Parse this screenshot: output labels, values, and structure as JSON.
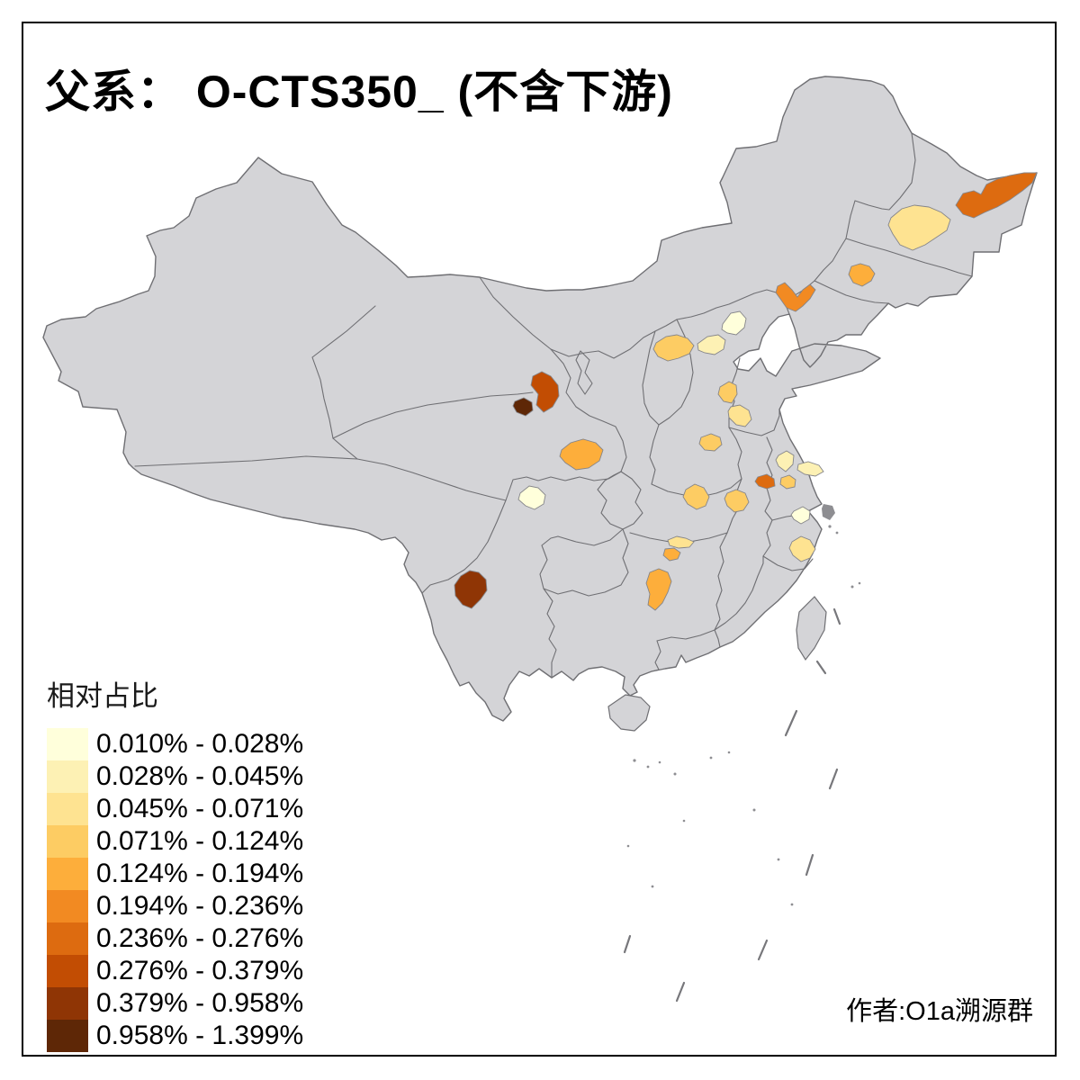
{
  "title": "父系： O-CTS350_ (不含下游)",
  "attribution": "作者:O1a溯源群",
  "legend": {
    "title": "相对占比",
    "classes": [
      {
        "label": "0.010% - 0.028%",
        "color": "#FFFFDB"
      },
      {
        "label": "0.028% - 0.045%",
        "color": "#FDF1B4"
      },
      {
        "label": "0.045% - 0.071%",
        "color": "#FEE391"
      },
      {
        "label": "0.071% - 0.124%",
        "color": "#FDCC63"
      },
      {
        "label": "0.124% - 0.194%",
        "color": "#FDAE3B"
      },
      {
        "label": "0.194% - 0.236%",
        "color": "#F28A22"
      },
      {
        "label": "0.236% - 0.276%",
        "color": "#DD6B10"
      },
      {
        "label": "0.276% - 0.379%",
        "color": "#C24D03"
      },
      {
        "label": "0.379% - 0.958%",
        "color": "#8F3505"
      },
      {
        "label": "0.958% - 1.399%",
        "color": "#5E2706"
      }
    ]
  },
  "map": {
    "land_fill": "#D4D4D7",
    "border_color": "#6F6F73",
    "region_stroke": "#85858A",
    "regions": [
      {
        "name": "heilongjiang-northeast",
        "class_index": 7,
        "points": [
          [
            1062,
            228
          ],
          [
            1070,
            215
          ],
          [
            1082,
            212
          ],
          [
            1090,
            216
          ],
          [
            1096,
            205
          ],
          [
            1108,
            199
          ],
          [
            1122,
            195
          ],
          [
            1138,
            192
          ],
          [
            1152,
            192
          ],
          [
            1147,
            203
          ],
          [
            1136,
            212
          ],
          [
            1122,
            222
          ],
          [
            1108,
            230
          ],
          [
            1094,
            236
          ],
          [
            1082,
            242
          ],
          [
            1070,
            238
          ]
        ]
      },
      {
        "name": "heilongjiang-west",
        "class_index": 3,
        "points": [
          [
            990,
            242
          ],
          [
            1002,
            232
          ],
          [
            1016,
            228
          ],
          [
            1032,
            230
          ],
          [
            1046,
            236
          ],
          [
            1056,
            244
          ],
          [
            1052,
            256
          ],
          [
            1040,
            264
          ],
          [
            1028,
            272
          ],
          [
            1014,
            278
          ],
          [
            1000,
            272
          ],
          [
            992,
            260
          ],
          [
            987,
            250
          ]
        ]
      },
      {
        "name": "jilin-west",
        "class_index": 5,
        "points": [
          [
            946,
            296
          ],
          [
            956,
            293
          ],
          [
            966,
            296
          ],
          [
            972,
            304
          ],
          [
            968,
            312
          ],
          [
            958,
            318
          ],
          [
            948,
            314
          ],
          [
            943,
            305
          ]
        ]
      },
      {
        "name": "liaoning-west",
        "class_index": 6,
        "points": [
          [
            864,
            318
          ],
          [
            872,
            314
          ],
          [
            880,
            322
          ],
          [
            886,
            330
          ],
          [
            892,
            322
          ],
          [
            900,
            316
          ],
          [
            906,
            322
          ],
          [
            900,
            332
          ],
          [
            892,
            340
          ],
          [
            884,
            346
          ],
          [
            874,
            342
          ],
          [
            867,
            332
          ],
          [
            862,
            325
          ]
        ]
      },
      {
        "name": "shanxi-north",
        "class_index": 4,
        "points": [
          [
            729,
            381
          ],
          [
            740,
            374
          ],
          [
            752,
            372
          ],
          [
            764,
            376
          ],
          [
            771,
            384
          ],
          [
            766,
            393
          ],
          [
            754,
            398
          ],
          [
            742,
            401
          ],
          [
            731,
            396
          ],
          [
            726,
            388
          ]
        ]
      },
      {
        "name": "hebei-central",
        "class_index": 2,
        "points": [
          [
            775,
            382
          ],
          [
            786,
            374
          ],
          [
            798,
            372
          ],
          [
            806,
            378
          ],
          [
            804,
            388
          ],
          [
            794,
            394
          ],
          [
            783,
            392
          ],
          [
            776,
            389
          ]
        ]
      },
      {
        "name": "beijing",
        "class_index": 1,
        "points": [
          [
            803,
            360
          ],
          [
            812,
            348
          ],
          [
            822,
            346
          ],
          [
            829,
            354
          ],
          [
            827,
            364
          ],
          [
            818,
            372
          ],
          [
            808,
            370
          ],
          [
            802,
            366
          ]
        ]
      },
      {
        "name": "hebei-south",
        "class_index": 4,
        "points": [
          [
            800,
            430
          ],
          [
            810,
            424
          ],
          [
            818,
            428
          ],
          [
            819,
            438
          ],
          [
            813,
            448
          ],
          [
            804,
            446
          ],
          [
            798,
            438
          ]
        ]
      },
      {
        "name": "shandong-west",
        "class_index": 3,
        "points": [
          [
            812,
            452
          ],
          [
            822,
            450
          ],
          [
            832,
            456
          ],
          [
            835,
            466
          ],
          [
            828,
            474
          ],
          [
            818,
            472
          ],
          [
            810,
            464
          ],
          [
            809,
            457
          ]
        ]
      },
      {
        "name": "henan-north",
        "class_index": 4,
        "points": [
          [
            779,
            486
          ],
          [
            790,
            482
          ],
          [
            800,
            486
          ],
          [
            802,
            494
          ],
          [
            794,
            501
          ],
          [
            783,
            500
          ],
          [
            777,
            493
          ]
        ]
      },
      {
        "name": "gansu-lanzhou",
        "class_index": 8,
        "points": [
          [
            592,
            418
          ],
          [
            602,
            413
          ],
          [
            612,
            418
          ],
          [
            620,
            428
          ],
          [
            621,
            440
          ],
          [
            614,
            452
          ],
          [
            604,
            458
          ],
          [
            596,
            450
          ],
          [
            598,
            438
          ],
          [
            590,
            428
          ]
        ]
      },
      {
        "name": "gansu-linxia",
        "class_index": 10,
        "points": [
          [
            572,
            446
          ],
          [
            582,
            442
          ],
          [
            591,
            447
          ],
          [
            592,
            456
          ],
          [
            584,
            462
          ],
          [
            574,
            458
          ],
          [
            570,
            451
          ]
        ]
      },
      {
        "name": "shaanxi-south",
        "class_index": 5,
        "points": [
          [
            624,
            500
          ],
          [
            634,
            492
          ],
          [
            648,
            488
          ],
          [
            662,
            492
          ],
          [
            670,
            500
          ],
          [
            666,
            512
          ],
          [
            654,
            520
          ],
          [
            640,
            522
          ],
          [
            628,
            514
          ],
          [
            622,
            507
          ]
        ]
      },
      {
        "name": "sichuan-central",
        "class_index": 1,
        "points": [
          [
            578,
            548
          ],
          [
            588,
            540
          ],
          [
            598,
            542
          ],
          [
            606,
            550
          ],
          [
            604,
            560
          ],
          [
            594,
            566
          ],
          [
            584,
            562
          ],
          [
            576,
            555
          ]
        ]
      },
      {
        "name": "hubei-north",
        "class_index": 4,
        "points": [
          [
            762,
            544
          ],
          [
            772,
            538
          ],
          [
            782,
            542
          ],
          [
            788,
            552
          ],
          [
            784,
            562
          ],
          [
            774,
            566
          ],
          [
            764,
            560
          ],
          [
            759,
            552
          ]
        ]
      },
      {
        "name": "anhui-west",
        "class_index": 4,
        "points": [
          [
            808,
            548
          ],
          [
            818,
            544
          ],
          [
            828,
            548
          ],
          [
            832,
            558
          ],
          [
            826,
            567
          ],
          [
            816,
            569
          ],
          [
            808,
            562
          ],
          [
            805,
            554
          ]
        ]
      },
      {
        "name": "jiangsu-nanjing",
        "class_index": 7,
        "points": [
          [
            842,
            530
          ],
          [
            852,
            527
          ],
          [
            860,
            532
          ],
          [
            861,
            540
          ],
          [
            852,
            543
          ],
          [
            843,
            540
          ],
          [
            839,
            535
          ]
        ]
      },
      {
        "name": "jiangsu-central",
        "class_index": 4,
        "points": [
          [
            868,
            531
          ],
          [
            877,
            528
          ],
          [
            884,
            533
          ],
          [
            883,
            541
          ],
          [
            874,
            543
          ],
          [
            867,
            538
          ]
        ]
      },
      {
        "name": "jiangsu-north",
        "class_index": 2,
        "points": [
          [
            865,
            506
          ],
          [
            874,
            501
          ],
          [
            882,
            506
          ],
          [
            881,
            516
          ],
          [
            873,
            524
          ],
          [
            865,
            518
          ],
          [
            862,
            511
          ]
        ]
      },
      {
        "name": "jiangsu-east",
        "class_index": 2,
        "points": [
          [
            887,
            516
          ],
          [
            898,
            513
          ],
          [
            910,
            517
          ],
          [
            915,
            524
          ],
          [
            906,
            529
          ],
          [
            894,
            527
          ],
          [
            886,
            522
          ]
        ]
      },
      {
        "name": "jiangsu-south",
        "class_index": 1,
        "points": [
          [
            882,
            568
          ],
          [
            892,
            563
          ],
          [
            900,
            568
          ],
          [
            899,
            577
          ],
          [
            890,
            582
          ],
          [
            882,
            577
          ],
          [
            879,
            572
          ]
        ]
      },
      {
        "name": "zhejiang-coast",
        "class_index": 3,
        "points": [
          [
            880,
            602
          ],
          [
            890,
            596
          ],
          [
            900,
            600
          ],
          [
            906,
            610
          ],
          [
            900,
            620
          ],
          [
            890,
            624
          ],
          [
            881,
            617
          ],
          [
            877,
            609
          ]
        ]
      },
      {
        "name": "hunan-northwest",
        "class_index": 3,
        "points": [
          [
            742,
            600
          ],
          [
            752,
            596
          ],
          [
            762,
            598
          ],
          [
            771,
            602
          ],
          [
            766,
            608
          ],
          [
            754,
            609
          ],
          [
            744,
            606
          ]
        ]
      },
      {
        "name": "hunan-west",
        "class_index": 5,
        "points": [
          [
            739,
            610
          ],
          [
            749,
            609
          ],
          [
            756,
            614
          ],
          [
            753,
            621
          ],
          [
            744,
            623
          ],
          [
            737,
            617
          ]
        ]
      },
      {
        "name": "hunan-southwest",
        "class_index": 5,
        "points": [
          [
            722,
            636
          ],
          [
            732,
            632
          ],
          [
            742,
            636
          ],
          [
            746,
            646
          ],
          [
            742,
            658
          ],
          [
            736,
            670
          ],
          [
            728,
            678
          ],
          [
            720,
            672
          ],
          [
            722,
            660
          ],
          [
            718,
            648
          ]
        ]
      },
      {
        "name": "yunnan-dali",
        "class_index": 9,
        "points": [
          [
            505,
            650
          ],
          [
            512,
            640
          ],
          [
            522,
            634
          ],
          [
            532,
            636
          ],
          [
            540,
            644
          ],
          [
            541,
            656
          ],
          [
            534,
            666
          ],
          [
            524,
            676
          ],
          [
            514,
            672
          ],
          [
            506,
            662
          ]
        ]
      }
    ]
  }
}
